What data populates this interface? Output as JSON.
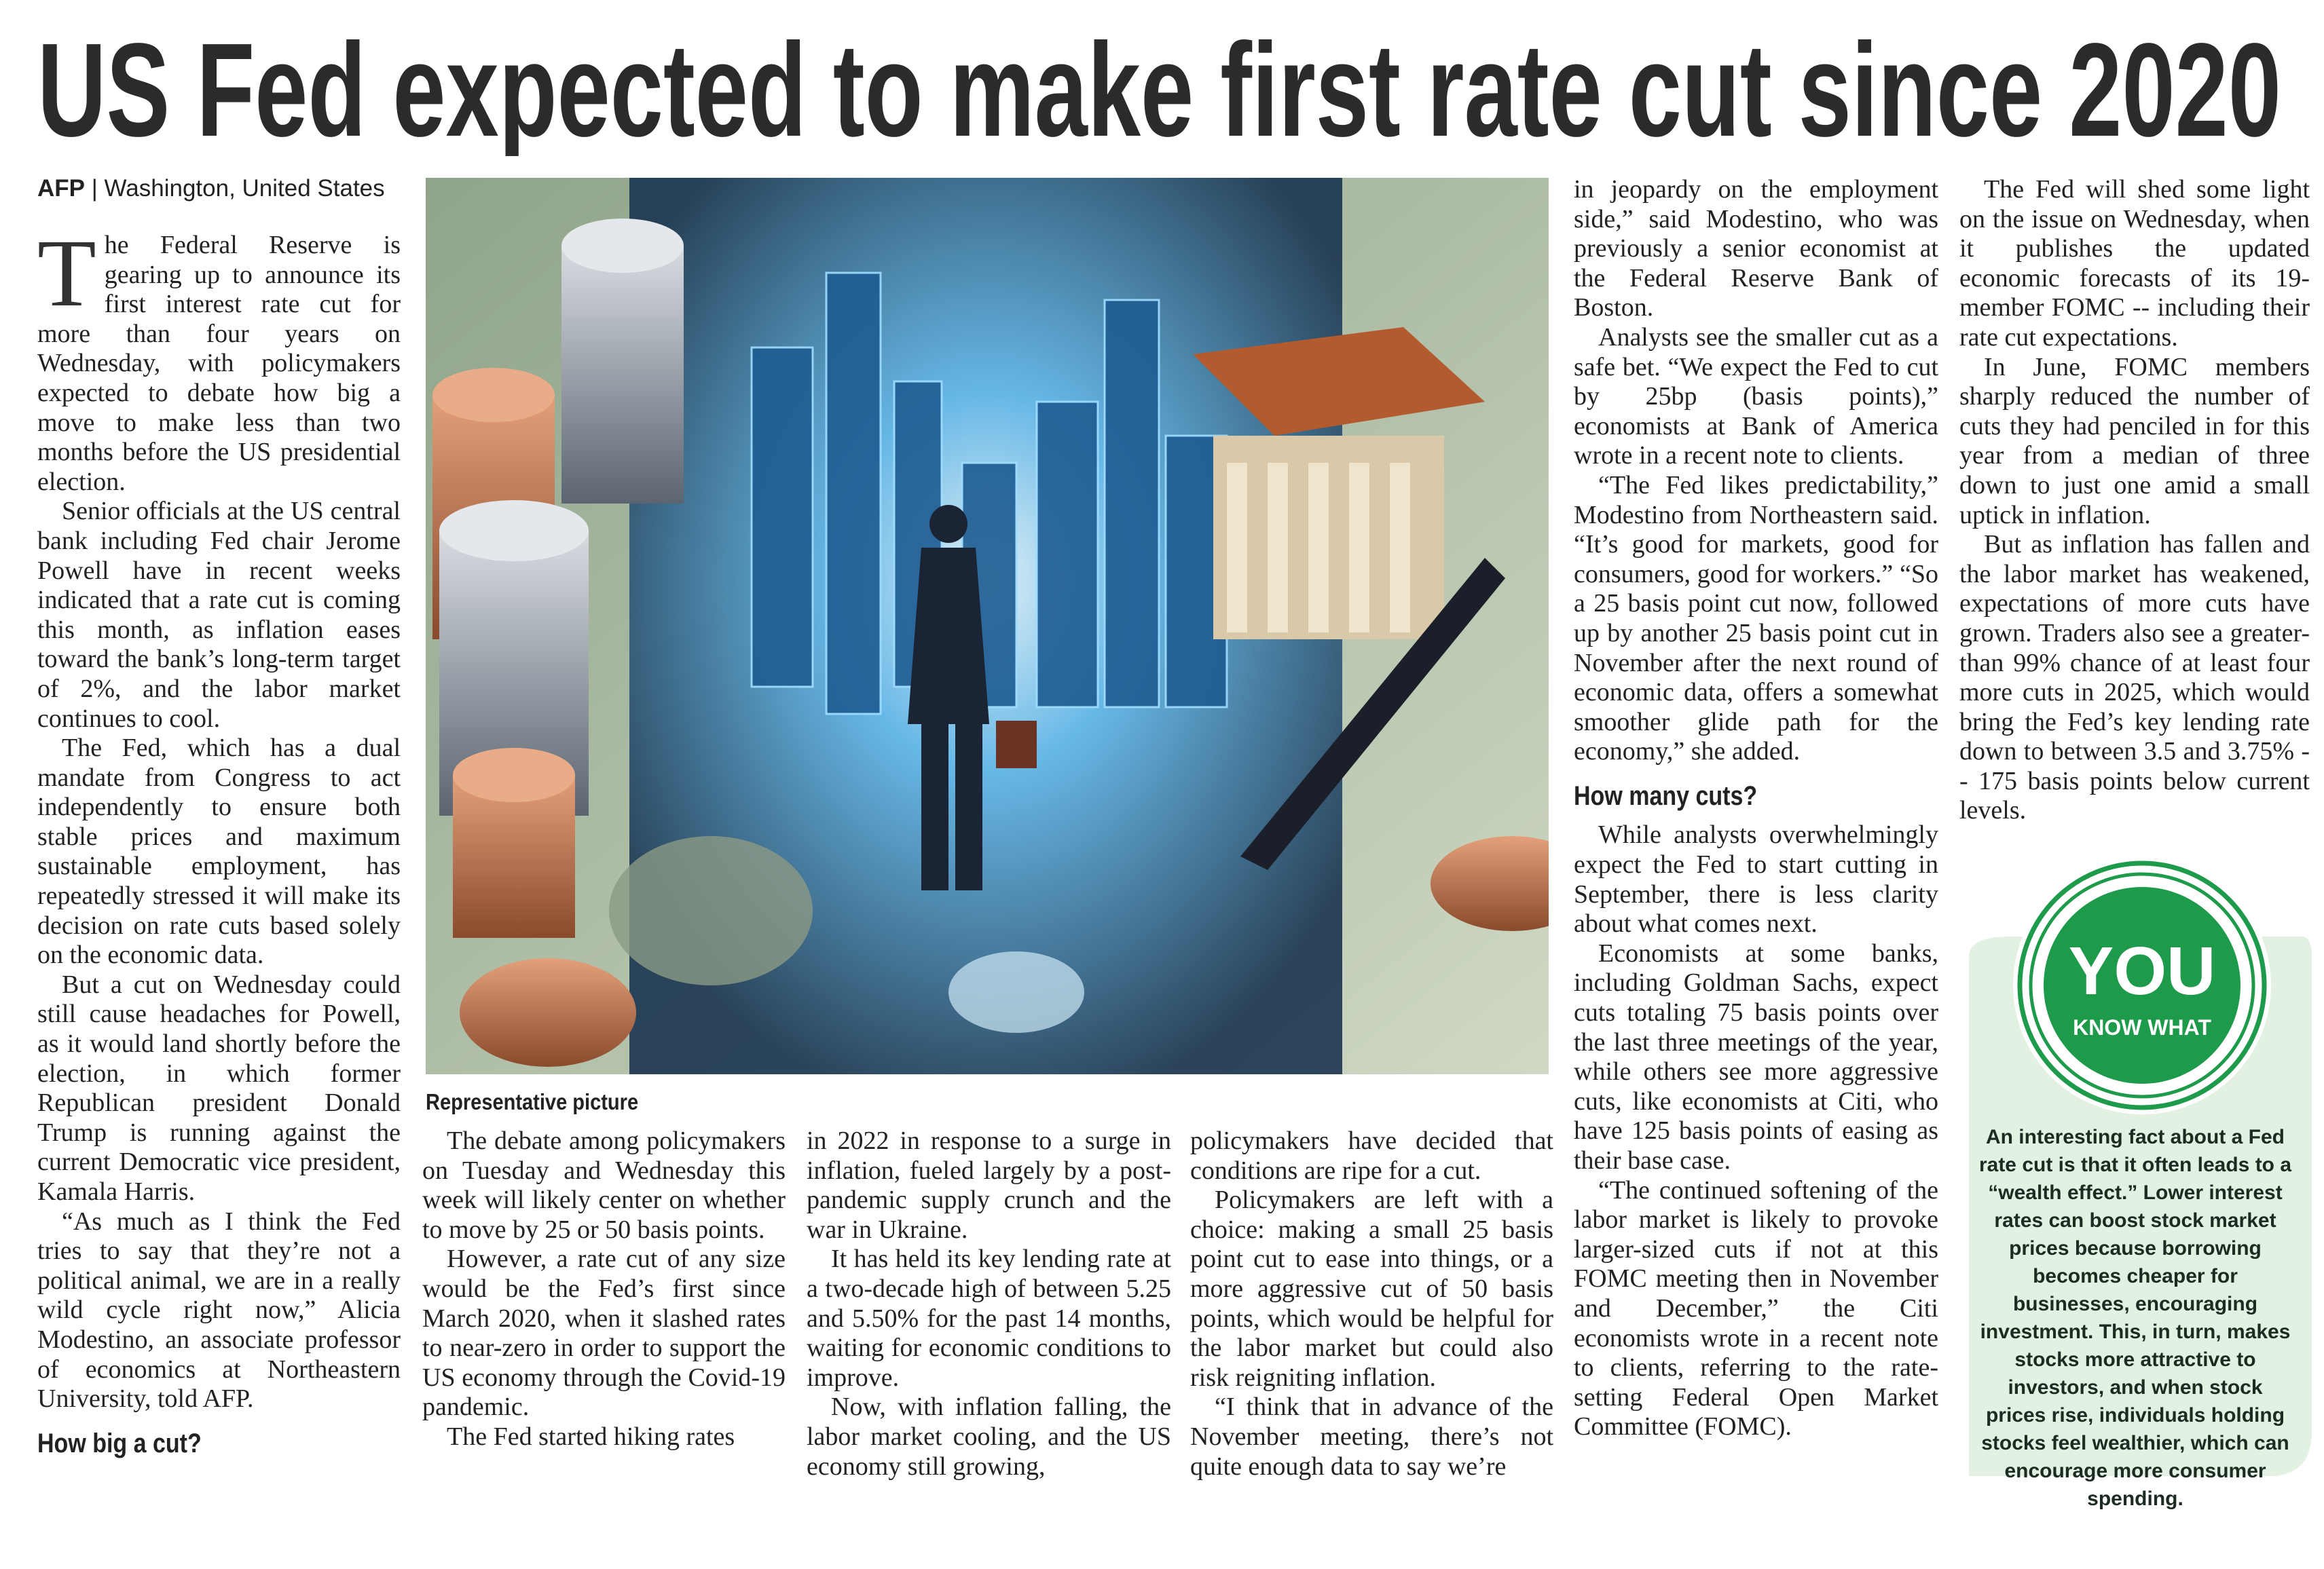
{
  "headline": "US Fed expected to make first rate cut since 2020",
  "byline": {
    "agency": "AFP",
    "location": "Washington, United States"
  },
  "image_caption": "Representative picture",
  "columns": [
    {
      "drop_cap": "T",
      "paragraphs": [
        "he Federal Reserve is gearing up to announce its first interest rate cut for more than four years on Wednesday, with policymakers expected to debate how big a move to make less than two months before the US presidential election.",
        "Senior officials at the US central bank including Fed chair Jerome Powell have in recent weeks indicated that a rate cut is coming this month, as inflation eases toward the bank’s long-term target of 2%, and the labor market continues to cool.",
        "The Fed, which has a dual mandate from Congress to act independently to ensure both stable prices and maximum sustainable employment, has repeatedly stressed it will make its decision on rate cuts based solely on the economic data.",
        "But a cut on Wednesday could still cause headaches for Powell, as it would land shortly before the election, in which former Republican president Donald Trump is running against the current Democratic vice president, Kamala Harris.",
        "“As much as I think the Fed tries to say that they’re not a political animal, we are in a really wild cycle right now,” Alicia Modestino, an associate professor of economics at Northeastern University, told AFP."
      ],
      "subhead": "How big a cut?"
    },
    {
      "paragraphs": [
        "The debate among policymakers on Tuesday and Wednesday this week will likely center on whether to move by 25 or 50 basis points.",
        "However, a rate cut of any size would be the Fed’s first since March 2020, when it slashed rates to near-zero in order to support the US economy through the Covid-19 pandemic.",
        "The Fed started hiking rates"
      ]
    },
    {
      "paragraphs": [
        "in 2022 in response to a surge in inflation, fueled largely by a post-pandemic supply crunch and the war in Ukraine.",
        "It has held its key lending rate at a two-decade high of between 5.25 and 5.50% for the past 14 months, waiting for economic conditions to improve.",
        "Now, with inflation falling, the labor market cooling, and the US economy still growing,"
      ]
    },
    {
      "paragraphs": [
        "policymakers have decided that conditions are ripe for a cut.",
        "Policymakers are left with a choice: making a small 25 basis point cut to ease into things, or a more aggressive cut of 50 basis points, which would be helpful for the labor market but could also risk reigniting inflation.",
        "“I think that in advance of the November meeting, there’s not quite enough data to say we’re"
      ]
    },
    {
      "paragraphs": [
        "in jeopardy on the employment side,” said Modestino, who was previously a senior economist at the Federal Reserve Bank of Boston.",
        "Analysts see the smaller cut as a safe bet. “We expect the Fed to cut by 25bp (basis points),” economists at Bank of America wrote in a recent note to clients.",
        "“The Fed likes predictability,” Modestino from Northeastern said. “It’s good for markets, good for consumers, good for workers.” “So a 25 basis point cut now, followed up by another 25 basis point cut in November after the next round of economic data, offers a somewhat smoother glide path for the economy,” she added."
      ],
      "subhead": "How many cuts?",
      "paragraphs_after": [
        "While analysts overwhelmingly expect the Fed to start cutting in September, there is less clarity about what comes next.",
        "Economists at some banks, including Goldman Sachs, expect cuts totaling 75 basis points over the last three meetings of the year, while others see more aggressive cuts, like economists at Citi, who have 125 basis points of easing as their base case.",
        "“The continued softening of the labor market is likely to provoke larger-sized cuts if not at this FOMC meeting then in November and December,” the Citi economists wrote in a recent note to clients, referring to the rate-setting Federal Open Market Committee (FOMC)."
      ]
    },
    {
      "paragraphs": [
        "The Fed will shed some light on the issue on Wednesday, when it publishes the updated economic forecasts of its 19-member FOMC -- including their rate cut expectations.",
        "In June, FOMC members sharply reduced the number of cuts they had penciled in for this year from a median of three down to just one amid a small uptick in inflation.",
        "But as inflation has fallen and the labor market has weakened, expectations of more cuts have grown. Traders also see a greater-than 99% chance of at least four more cuts in 2025, which would bring the Fed’s key lending rate down to between 3.5 and 3.75% -- 175 basis points below current levels."
      ]
    }
  ],
  "fact_box": {
    "badge_top": "YOU",
    "badge_bottom": "KNOW WHAT",
    "text": "An interesting fact about a Fed rate cut is that it often leads to a “wealth effect.” Lower interest rates can boost stock market prices because borrowing becomes cheaper for businesses, encouraging investment. This, in turn, makes stocks more attractive to investors, and when stock prices rise, individuals holding stocks feel wealthier, which can encourage more consumer spending."
  }
}
